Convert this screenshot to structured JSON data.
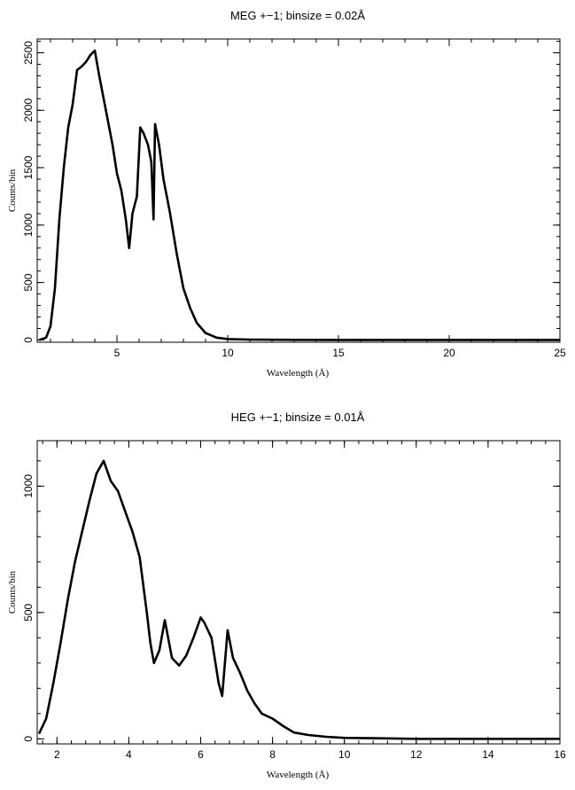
{
  "chart_data": [
    {
      "type": "line",
      "title": "MEG +−1; binsize = 0.02Å",
      "xlabel": "Wavelength (Å)",
      "ylabel": "Counts/bin",
      "xlim": [
        1.4,
        25
      ],
      "ylim": [
        -20,
        2620
      ],
      "xticks": [
        5,
        10,
        15,
        20,
        25
      ],
      "yticks": [
        0,
        500,
        1000,
        1500,
        2000,
        2500
      ],
      "grid": false,
      "line_color": "#000000",
      "x": [
        1.5,
        1.8,
        2.0,
        2.2,
        2.4,
        2.6,
        2.8,
        3.0,
        3.2,
        3.4,
        3.6,
        3.8,
        4.0,
        4.2,
        4.4,
        4.6,
        4.8,
        5.0,
        5.2,
        5.4,
        5.55,
        5.7,
        5.9,
        6.05,
        6.2,
        6.4,
        6.55,
        6.65,
        6.72,
        6.9,
        7.1,
        7.4,
        7.7,
        8.0,
        8.3,
        8.6,
        9.0,
        9.5,
        10.0,
        11.0,
        13.0,
        15.0,
        20.0,
        25.0
      ],
      "y": [
        0,
        20,
        120,
        450,
        1050,
        1500,
        1850,
        2050,
        2350,
        2380,
        2420,
        2480,
        2520,
        2300,
        2100,
        1900,
        1700,
        1450,
        1300,
        1050,
        800,
        1100,
        1250,
        1850,
        1800,
        1700,
        1550,
        1050,
        1880,
        1700,
        1400,
        1100,
        750,
        450,
        280,
        150,
        60,
        20,
        8,
        3,
        1,
        0,
        0,
        0
      ]
    },
    {
      "type": "line",
      "title": "HEG +−1; binsize = 0.01Å",
      "xlabel": "Wavelength (Å)",
      "ylabel": "Counts/bin",
      "xlim": [
        1.45,
        16
      ],
      "ylim": [
        -20,
        1180
      ],
      "xticks": [
        2,
        4,
        6,
        8,
        10,
        12,
        14,
        16
      ],
      "yticks": [
        0,
        500,
        1000
      ],
      "grid": false,
      "line_color": "#000000",
      "x": [
        1.5,
        1.7,
        1.9,
        2.1,
        2.3,
        2.5,
        2.7,
        2.9,
        3.1,
        3.3,
        3.5,
        3.7,
        3.9,
        4.1,
        4.3,
        4.5,
        4.6,
        4.7,
        4.85,
        5.0,
        5.2,
        5.4,
        5.6,
        5.8,
        6.0,
        6.1,
        6.3,
        6.5,
        6.6,
        6.75,
        6.9,
        7.1,
        7.3,
        7.5,
        7.7,
        8.0,
        8.3,
        8.6,
        9.0,
        9.5,
        10.0,
        11.0,
        12.0,
        14.0,
        16.0
      ],
      "y": [
        20,
        80,
        220,
        380,
        550,
        700,
        820,
        940,
        1050,
        1100,
        1020,
        980,
        900,
        820,
        720,
        500,
        380,
        300,
        350,
        470,
        320,
        290,
        330,
        400,
        480,
        460,
        400,
        220,
        170,
        430,
        320,
        260,
        190,
        140,
        100,
        80,
        50,
        25,
        15,
        8,
        4,
        2,
        0,
        0,
        0
      ]
    }
  ]
}
